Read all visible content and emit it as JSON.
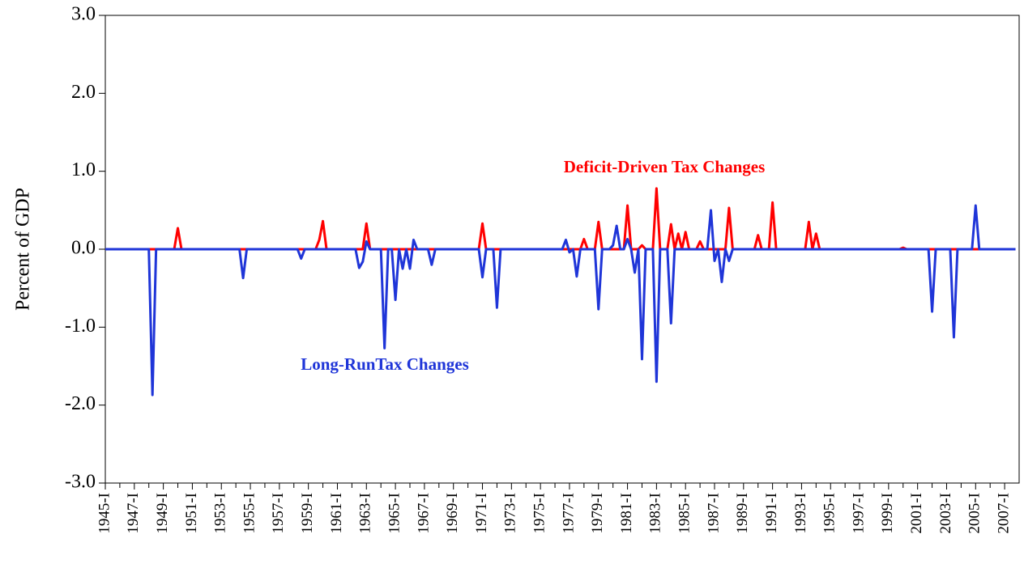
{
  "chart_data": {
    "type": "line",
    "y_label": "Percent of GDP",
    "categories": [
      "1945-I",
      null,
      null,
      null,
      null,
      null,
      null,
      null,
      "1947-I",
      null,
      null,
      null,
      null,
      null,
      null,
      null,
      "1949-I",
      null,
      null,
      null,
      null,
      null,
      null,
      null,
      "1951-I",
      null,
      null,
      null,
      null,
      null,
      null,
      null,
      "1953-I",
      null,
      null,
      null,
      null,
      null,
      null,
      null,
      "1955-I",
      null,
      null,
      null,
      null,
      null,
      null,
      null,
      "1957-I",
      null,
      null,
      null,
      null,
      null,
      null,
      null,
      "1959-I",
      null,
      null,
      null,
      null,
      null,
      null,
      null,
      "1961-I",
      null,
      null,
      null,
      null,
      null,
      null,
      null,
      "1963-I",
      null,
      null,
      null,
      null,
      null,
      null,
      null,
      "1965-I",
      null,
      null,
      null,
      null,
      null,
      null,
      null,
      "1967-I",
      null,
      null,
      null,
      null,
      null,
      null,
      null,
      "1969-I",
      null,
      null,
      null,
      null,
      null,
      null,
      null,
      "1971-I",
      null,
      null,
      null,
      null,
      null,
      null,
      null,
      "1973-I",
      null,
      null,
      null,
      null,
      null,
      null,
      null,
      "1975-I",
      null,
      null,
      null,
      null,
      null,
      null,
      null,
      "1977-I",
      null,
      null,
      null,
      null,
      null,
      null,
      null,
      "1979-I",
      null,
      null,
      null,
      null,
      null,
      null,
      null,
      "1981-I",
      null,
      null,
      null,
      null,
      null,
      null,
      null,
      "1983-I",
      null,
      null,
      null,
      null,
      null,
      null,
      null,
      "1985-I",
      null,
      null,
      null,
      null,
      null,
      null,
      null,
      "1987-I",
      null,
      null,
      null,
      null,
      null,
      null,
      null,
      "1989-I",
      null,
      null,
      null,
      null,
      null,
      null,
      null,
      "1991-I",
      null,
      null,
      null,
      null,
      null,
      null,
      null,
      "1993-I",
      null,
      null,
      null,
      null,
      null,
      null,
      null,
      "1995-I",
      null,
      null,
      null,
      null,
      null,
      null,
      null,
      "1997-I",
      null,
      null,
      null,
      null,
      null,
      null,
      null,
      "1999-I",
      null,
      null,
      null,
      null,
      null,
      null,
      null,
      "2001-I",
      null,
      null,
      null,
      null,
      null,
      null,
      null,
      "2003-I",
      null,
      null,
      null,
      null,
      null,
      null,
      null,
      "2005-I",
      null,
      null,
      null,
      null,
      null,
      null,
      null,
      "2007-I",
      null,
      null,
      null
    ],
    "series": [
      {
        "name": "Deficit-Driven Tax Changes",
        "color": "#ff0000",
        "values": [
          0,
          0,
          0,
          0,
          0,
          0,
          0,
          0,
          0,
          0,
          0,
          0,
          0,
          0,
          0,
          0,
          0,
          0,
          0,
          0,
          0.27,
          0,
          0,
          0,
          0,
          0,
          0,
          0,
          0,
          0,
          0,
          0,
          0,
          0,
          0,
          0,
          0,
          0,
          0,
          0,
          0,
          0,
          0,
          0,
          0,
          0,
          0,
          0,
          0,
          0,
          0,
          0,
          0,
          0,
          0,
          0,
          0,
          0,
          0,
          0.12,
          0.36,
          0,
          0,
          0,
          0,
          0,
          0,
          0,
          0,
          0,
          0,
          0,
          0.33,
          0,
          0,
          0,
          0,
          0,
          0,
          0,
          0,
          0,
          0,
          0,
          0,
          0,
          0,
          0,
          0,
          0,
          0,
          0,
          0,
          0,
          0,
          0,
          0,
          0,
          0,
          0,
          0,
          0,
          0,
          0,
          0.33,
          0,
          0,
          0,
          0,
          0,
          0,
          0,
          0,
          0,
          0,
          0,
          0,
          0,
          0,
          0,
          0,
          0,
          0,
          0,
          0,
          0,
          0,
          0,
          0,
          0,
          0,
          0,
          0.13,
          0,
          0,
          0,
          0.35,
          0,
          0,
          0,
          0,
          0,
          0,
          0,
          0.56,
          0,
          0,
          0,
          0.05,
          0,
          0,
          0,
          0.78,
          0,
          0,
          0,
          0.32,
          0,
          0.2,
          0,
          0.22,
          0,
          0,
          0,
          0.1,
          0,
          0,
          0,
          0,
          0,
          0,
          0,
          0.53,
          0,
          0,
          0,
          0,
          0,
          0,
          0,
          0.18,
          0,
          0,
          0,
          0.6,
          0,
          0,
          0,
          0,
          0,
          0,
          0,
          0,
          0,
          0.35,
          0,
          0.2,
          0,
          0,
          0,
          0,
          0,
          0,
          0,
          0,
          0,
          0,
          0,
          0,
          0,
          0,
          0,
          0,
          0,
          0,
          0,
          0,
          0,
          0,
          0,
          0.02,
          0,
          0,
          0,
          0,
          0,
          0,
          0,
          0,
          0,
          0,
          0,
          0,
          0,
          0,
          0,
          0,
          0,
          0,
          0,
          0,
          0,
          0,
          0,
          0,
          0,
          0,
          0,
          0,
          0,
          0,
          0
        ]
      },
      {
        "name": "Long-RunTax Changes",
        "color": "#1f35d8",
        "values": [
          0,
          0,
          0,
          0,
          0,
          0,
          0,
          0,
          0,
          0,
          0,
          0,
          0,
          -1.87,
          0,
          0,
          0,
          0,
          0,
          0,
          0,
          0,
          0,
          0,
          0,
          0,
          0,
          0,
          0,
          0,
          0,
          0,
          0,
          0,
          0,
          0,
          0,
          0,
          -0.37,
          0,
          0,
          0,
          0,
          0,
          0,
          0,
          0,
          0,
          0,
          0,
          0,
          0,
          0,
          0,
          -0.12,
          0,
          0,
          0,
          0,
          0,
          0,
          0,
          0,
          0,
          0,
          0,
          0,
          0,
          0,
          0,
          -0.24,
          -0.16,
          0.1,
          0,
          0,
          0,
          0,
          -1.27,
          0,
          0,
          -0.65,
          0,
          -0.25,
          0,
          -0.25,
          0.12,
          0,
          0,
          0,
          0,
          -0.2,
          0,
          0,
          0,
          0,
          0,
          0,
          0,
          0,
          0,
          0,
          0,
          0,
          0,
          -0.36,
          0,
          0,
          0,
          -0.75,
          0,
          0,
          0,
          0,
          0,
          0,
          0,
          0,
          0,
          0,
          0,
          0,
          0,
          0,
          0,
          0,
          0,
          0,
          0.12,
          -0.04,
          0,
          -0.35,
          0,
          0,
          0,
          0,
          0,
          -0.77,
          0,
          0,
          0,
          0.05,
          0.3,
          0,
          0,
          0.13,
          0,
          -0.3,
          0,
          -1.41,
          0,
          0,
          0,
          -1.7,
          0,
          0,
          0,
          -0.95,
          0,
          0,
          0,
          0,
          0,
          0,
          0,
          0,
          0,
          0,
          0.5,
          -0.15,
          0,
          -0.42,
          0,
          -0.15,
          0,
          0,
          0,
          0,
          0,
          0,
          0,
          0,
          0,
          0,
          0,
          0,
          0,
          0,
          0,
          0,
          0,
          0,
          0,
          0,
          0,
          0,
          0,
          0,
          0,
          0,
          0,
          0,
          0,
          0,
          0,
          0,
          0,
          0,
          0,
          0,
          0,
          0,
          0,
          0,
          0,
          0,
          0,
          0,
          0,
          0,
          0,
          0,
          0,
          0,
          0,
          0,
          0,
          0,
          0,
          -0.8,
          0,
          0,
          0,
          0,
          0,
          -1.13,
          0,
          0,
          0,
          0,
          0,
          0.56,
          0,
          0,
          0,
          0,
          0,
          0,
          0,
          0,
          0,
          0,
          0
        ]
      }
    ],
    "ylim": [
      -3,
      3
    ],
    "yticks": [
      {
        "value": -3,
        "label": "-3.0"
      },
      {
        "value": -2,
        "label": "-2.0"
      },
      {
        "value": -1,
        "label": "-1.0"
      },
      {
        "value": 0,
        "label": "0.0"
      },
      {
        "value": 1,
        "label": "1.0"
      },
      {
        "value": 2,
        "label": "2.0"
      },
      {
        "value": 3,
        "label": "3.0"
      }
    ]
  }
}
